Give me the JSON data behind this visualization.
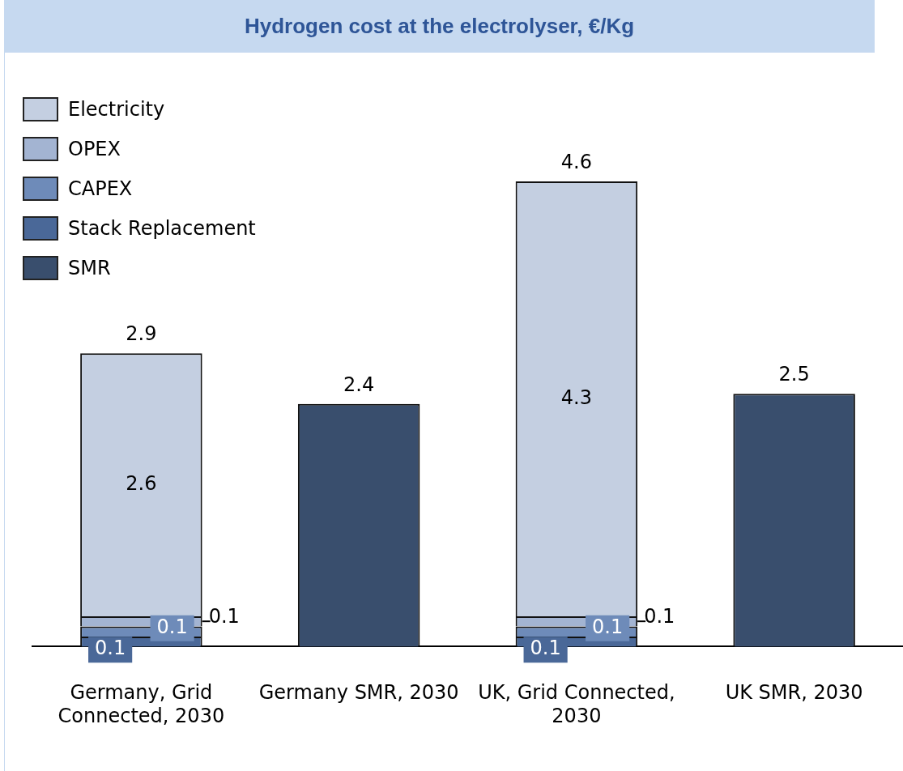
{
  "chart_data": {
    "type": "bar",
    "title": "Hydrogen cost at the electrolyser, €/Kg",
    "categories": [
      "Germany, Grid Connected, 2030",
      "Germany SMR, 2030",
      "UK, Grid Connected, 2030",
      "UK SMR, 2030"
    ],
    "stacked": true,
    "series": [
      {
        "name": "SMR",
        "color": "#394e6d",
        "values": [
          null,
          2.4,
          null,
          2.5
        ]
      },
      {
        "name": "Stack Replacement",
        "color": "#4a6898",
        "values": [
          0.1,
          null,
          0.1,
          null
        ]
      },
      {
        "name": "CAPEX",
        "color": "#6e8bb9",
        "values": [
          0.1,
          null,
          0.1,
          null
        ]
      },
      {
        "name": "OPEX",
        "color": "#a3b4d2",
        "values": [
          0.1,
          null,
          0.1,
          null
        ]
      },
      {
        "name": "Electricity",
        "color": "#c4cfe1",
        "values": [
          2.6,
          null,
          4.3,
          null
        ]
      }
    ],
    "data_labels": true,
    "totals": [
      "2.9",
      null,
      "4.6",
      null
    ],
    "legend": "top left",
    "grid": false
  }
}
